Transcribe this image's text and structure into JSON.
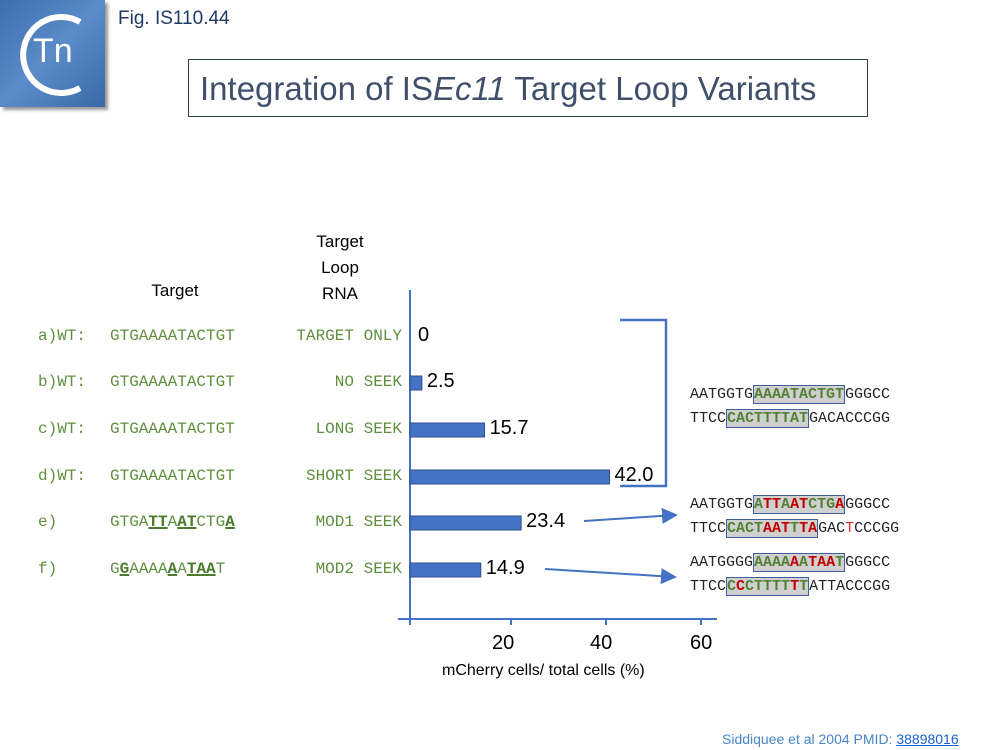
{
  "header": {
    "fig_label": "Fig. IS110.44",
    "title_pre": "Integration of IS",
    "title_italic": "Ec11",
    "title_post": " Target Loop Variants",
    "logo_text": "Tn"
  },
  "columns": {
    "target": "Target",
    "rna_line1": "Target",
    "rna_line2": "Loop",
    "rna_line3": "RNA"
  },
  "rows": [
    {
      "label": "a)WT:",
      "target": [
        {
          "t": "GTGAAAATACTGT",
          "m": false
        }
      ],
      "rna": "TARGET ONLY"
    },
    {
      "label": "b)WT:",
      "target": [
        {
          "t": "GTGAAAATACTGT",
          "m": false
        }
      ],
      "rna": "NO SEEK"
    },
    {
      "label": "c)WT:",
      "target": [
        {
          "t": "GTGAAAATACTGT",
          "m": false
        }
      ],
      "rna": "LONG SEEK"
    },
    {
      "label": "d)WT:",
      "target": [
        {
          "t": "GTGAAAATACTGT",
          "m": false
        }
      ],
      "rna": "SHORT SEEK"
    },
    {
      "label": "e)",
      "target": [
        {
          "t": "GTGA",
          "m": false
        },
        {
          "t": "TT",
          "m": true
        },
        {
          "t": "A",
          "m": false
        },
        {
          "t": "AT",
          "m": true
        },
        {
          "t": "CTG",
          "m": false
        },
        {
          "t": "A",
          "m": true
        }
      ],
      "rna": "MOD1 SEEK"
    },
    {
      "label": "f)",
      "target": [
        {
          "t": "G",
          "m": false
        },
        {
          "t": "G",
          "m": true
        },
        {
          "t": "AAAA",
          "m": false
        },
        {
          "t": "A",
          "m": true
        },
        {
          "t": "A",
          "m": false
        },
        {
          "t": "TAA",
          "m": true
        },
        {
          "t": "T",
          "m": false
        }
      ],
      "rna": "MOD2 SEEK"
    }
  ],
  "chart_data": {
    "type": "bar",
    "orientation": "horizontal",
    "categories": [
      "a",
      "b",
      "c",
      "d",
      "e",
      "f"
    ],
    "values": [
      0,
      2.5,
      15.7,
      42.0,
      23.4,
      14.9
    ],
    "value_labels": [
      "0",
      "2.5",
      "15.7",
      "42.0",
      "23.4",
      "14.9"
    ],
    "xlabel": "mCherry cells/ total cells (%)",
    "xticks": [
      "20",
      "40",
      "60"
    ],
    "xlim": [
      0,
      60
    ],
    "bar_color": "#4472c4"
  },
  "sequences": [
    {
      "top": [
        {
          "t": "AATGGTG",
          "c": "n"
        },
        {
          "box": [
            {
              "t": "AAAATACTGT",
              "c": "g"
            }
          ]
        },
        {
          "t": "GGGCC",
          "c": "n"
        }
      ],
      "bottom": [
        {
          "t": "TTCC",
          "c": "n"
        },
        {
          "box": [
            {
              "t": "CACTTTTAT",
              "c": "g"
            }
          ]
        },
        {
          "t": "GACACCCGG",
          "c": "n"
        }
      ]
    },
    {
      "top": [
        {
          "t": "AATGGTG",
          "c": "n"
        },
        {
          "box": [
            {
              "t": "A",
              "c": "g"
            },
            {
              "t": "TT",
              "c": "r"
            },
            {
              "t": "A",
              "c": "g"
            },
            {
              "t": "AT",
              "c": "r"
            },
            {
              "t": "CTG",
              "c": "g"
            },
            {
              "t": "A",
              "c": "r"
            }
          ]
        },
        {
          "t": "GGGCC",
          "c": "n"
        }
      ],
      "bottom": [
        {
          "t": "TTCC",
          "c": "n"
        },
        {
          "box": [
            {
              "t": "CACT",
              "c": "g"
            },
            {
              "t": "AAT",
              "c": "r"
            },
            {
              "t": "T",
              "c": "g"
            },
            {
              "t": "TA",
              "c": "r"
            }
          ]
        },
        {
          "t": "GAC",
          "c": "n"
        },
        {
          "t": "T",
          "c": "rt"
        },
        {
          "t": "CCCGG",
          "c": "n"
        }
      ]
    },
    {
      "top": [
        {
          "t": "AATGGGG",
          "c": "n"
        },
        {
          "box": [
            {
              "t": "AAAA",
              "c": "g"
            },
            {
              "t": "A",
              "c": "r"
            },
            {
              "t": "A",
              "c": "g"
            },
            {
              "t": "TAA",
              "c": "r"
            },
            {
              "t": "T",
              "c": "g"
            }
          ]
        },
        {
          "t": "GGGCC",
          "c": "n"
        }
      ],
      "bottom": [
        {
          "t": "TTCC",
          "c": "n"
        },
        {
          "box": [
            {
              "t": "C",
              "c": "g"
            },
            {
              "t": "C",
              "c": "r"
            },
            {
              "t": "CTTTT",
              "c": "g"
            },
            {
              "t": "T",
              "c": "r"
            },
            {
              "t": "T",
              "c": "g"
            }
          ]
        },
        {
          "t": "ATTACCCGG",
          "c": "n"
        }
      ]
    }
  ],
  "citation": {
    "text": "Siddiquee et al 2004 PMID: ",
    "link": "38898016"
  }
}
